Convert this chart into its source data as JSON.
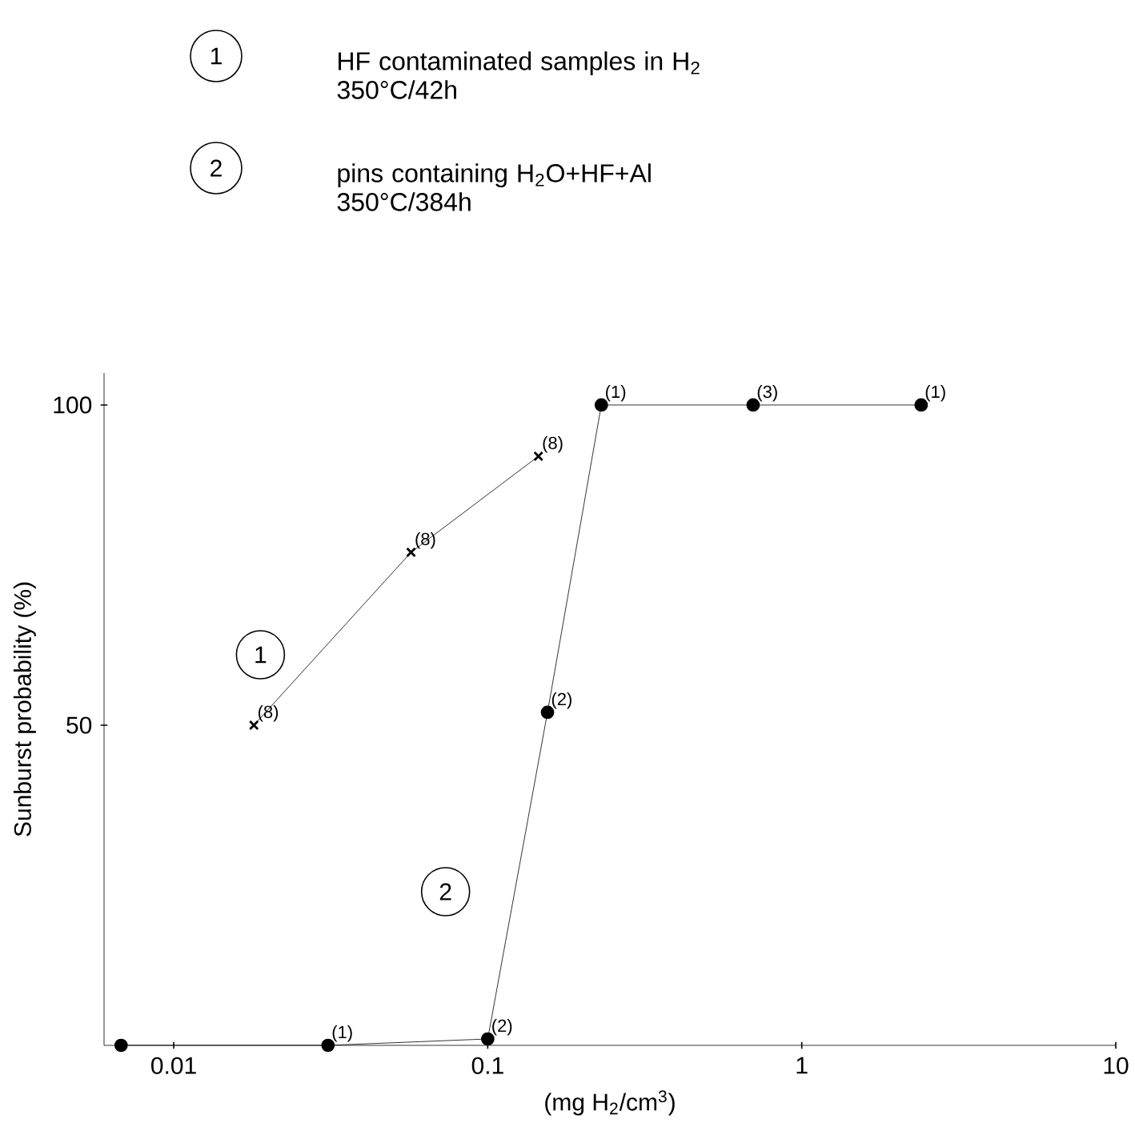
{
  "chart_data": {
    "type": "line",
    "xlabel": "(mg H$_{2}$/cm$^{3}$)",
    "ylabel": "Sunburst probability (%)",
    "log": "x",
    "xlim": [
      0.006,
      10
    ],
    "ylim": [
      0,
      105
    ],
    "xticks": [
      0.01,
      0.1,
      1,
      10
    ],
    "yticks": [
      50,
      100
    ],
    "grid": false,
    "series": [
      {
        "name": "HF contaminated samples in H$_{2}$ 350°C/42h",
        "color": "#000000",
        "marker": "cross",
        "x": [
          0.018,
          0.057,
          0.145
        ],
        "values": [
          50,
          77,
          92
        ]
      },
      {
        "name": "pins containing H$_{2}$O+HF+Al 350°C/384h",
        "color": "#000000",
        "marker": "circle",
        "x": [
          0.0068,
          0.031,
          0.1,
          0.155,
          0.23,
          0.7,
          2.4
        ],
        "values": [
          0,
          0,
          1,
          52,
          100,
          100,
          100
        ]
      }
    ],
    "annotations": [
      "1",
      "2",
      "1",
      "2",
      {
        "text": "(8)",
        "x": 0.018,
        "y": 50
      },
      {
        "text": "(8)",
        "x": 0.057,
        "y": 77
      },
      {
        "text": "(8)",
        "x": 0.145,
        "y": 92
      },
      {
        "text": "(1)",
        "x": 0.031,
        "y": 0
      },
      {
        "text": "(2)",
        "x": 0.1,
        "y": 1
      },
      {
        "text": "(2)",
        "x": 0.155,
        "y": 52
      },
      {
        "text": "(1)",
        "x": 0.23,
        "y": 100
      },
      {
        "text": "(3)",
        "x": 0.7,
        "y": 100
      },
      {
        "text": "(1)",
        "x": 2.4,
        "y": 100
      }
    ]
  }
}
